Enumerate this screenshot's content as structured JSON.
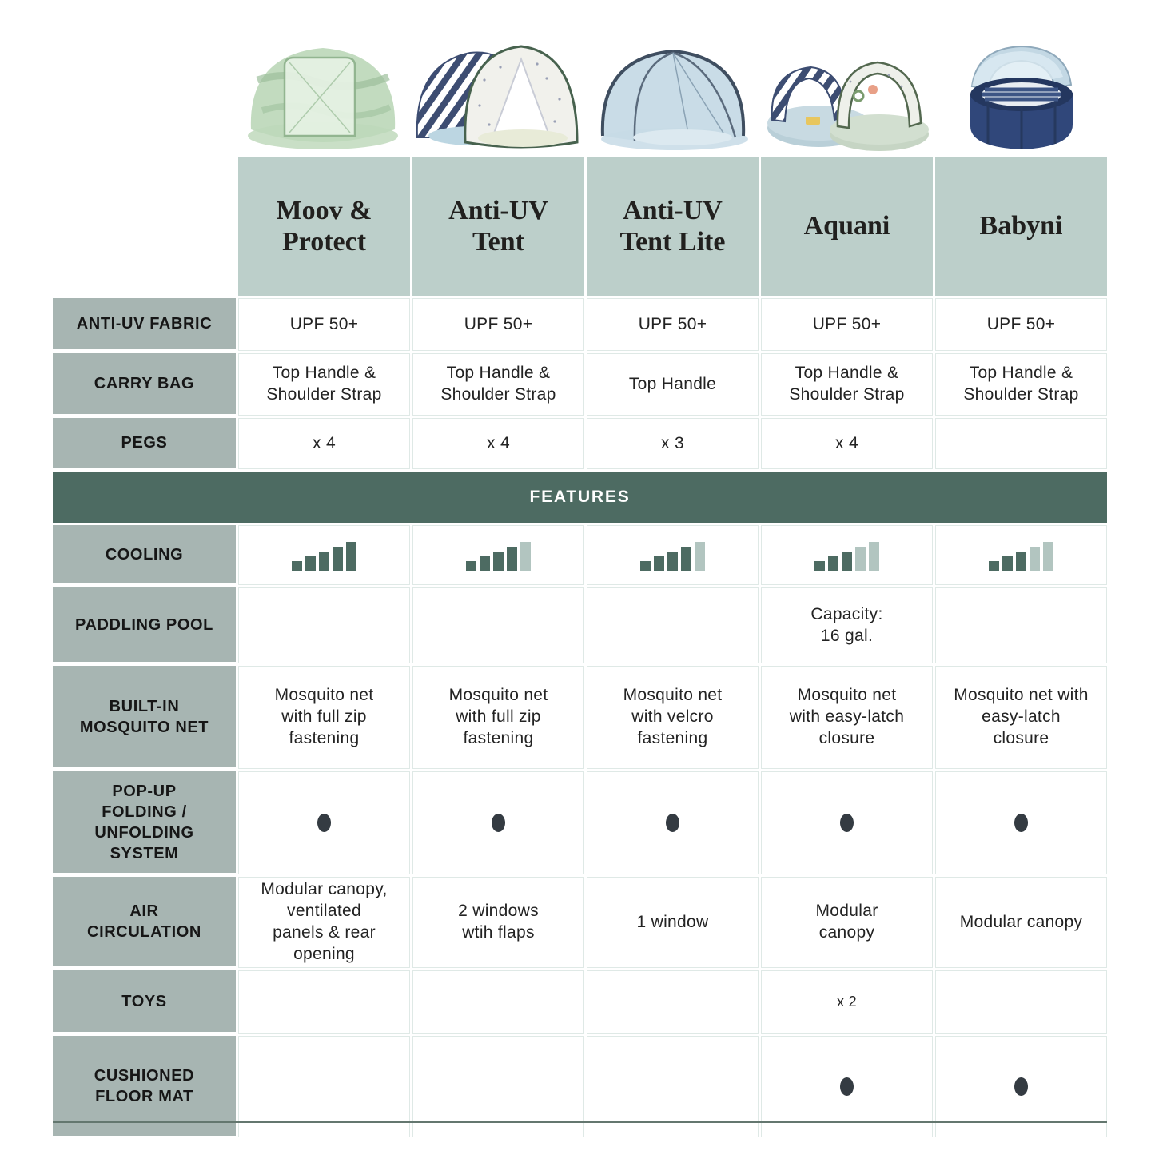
{
  "colors": {
    "header_bg": "#bccfca",
    "label_bg": "#a7b5b2",
    "features_bg": "#4d6b62",
    "cooling_bar_dark": "#4d6b62",
    "cooling_bar_light": "#b2c5c0",
    "dot": "#343b42",
    "bottom_border": "#64776f"
  },
  "products": {
    "names": [
      "Moov &\nProtect",
      "Anti-UV\nTent",
      "Anti-UV\nTent Lite",
      "Aquani",
      "Babyni"
    ],
    "images": [
      "moov-and-protect-tent",
      "anti-uv-tent",
      "anti-uv-tent-lite",
      "aquani-pool-tent",
      "babyni-playpen"
    ]
  },
  "sections": {
    "features": "FEATURES"
  },
  "rows": {
    "fabric": {
      "label": "ANTI-UV FABRIC",
      "values": [
        "UPF 50+",
        "UPF 50+",
        "UPF 50+",
        "UPF 50+",
        "UPF 50+"
      ]
    },
    "bag": {
      "label": "CARRY BAG",
      "values": [
        "Top Handle &\nShoulder Strap",
        "Top Handle &\nShoulder Strap",
        "Top Handle",
        "Top Handle &\nShoulder Strap",
        "Top Handle &\nShoulder Strap"
      ]
    },
    "pegs": {
      "label": "PEGS",
      "values": [
        "x 4",
        "x 4",
        "x 3",
        "x 4",
        ""
      ]
    },
    "cooling": {
      "label": "COOLING",
      "levels": [
        5,
        4,
        4,
        3,
        3
      ],
      "max": 5
    },
    "pool": {
      "label": "PADDLING POOL",
      "values": [
        "",
        "",
        "",
        "Capacity:\n16 gal.",
        ""
      ]
    },
    "net": {
      "label": "BUILT-IN\nMOSQUITO NET",
      "values": [
        "Mosquito net\nwith full zip\nfastening",
        "Mosquito net\nwith full zip\nfastening",
        "Mosquito net\nwith velcro\nfastening",
        "Mosquito net\nwith easy-latch\nclosure",
        "Mosquito net with\neasy-latch\nclosure"
      ]
    },
    "popup": {
      "label": "POP-UP\nFOLDING /\nUNFOLDING\nSYSTEM",
      "present": [
        true,
        true,
        true,
        true,
        true
      ]
    },
    "air": {
      "label": "AIR\nCIRCULATION",
      "values": [
        "Modular canopy,\nventilated\npanels & rear\nopening",
        "2 windows\nwtih flaps",
        "1 window",
        "Modular\ncanopy",
        "Modular canopy"
      ]
    },
    "toys": {
      "label": "TOYS",
      "values": [
        "",
        "",
        "",
        "x 2",
        ""
      ]
    },
    "mat": {
      "label": "CUSHIONED\nFLOOR MAT",
      "present": [
        false,
        false,
        false,
        true,
        true
      ]
    }
  }
}
